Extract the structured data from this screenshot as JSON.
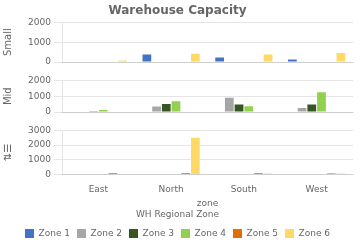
{
  "chart_data": [
    {
      "type": "bar",
      "title": "Warehouse Capacity",
      "ylabel": "Small",
      "categories": [
        "East",
        "North",
        "South",
        "West"
      ],
      "series": [
        {
          "name": "Zone 1",
          "color": "#4472c4",
          "values": [
            0,
            380,
            230,
            130
          ]
        },
        {
          "name": "Zone 2",
          "color": "#a6a6a6",
          "values": [
            0,
            0,
            0,
            0
          ]
        },
        {
          "name": "Zone 3",
          "color": "#375623",
          "values": [
            0,
            0,
            0,
            0
          ]
        },
        {
          "name": "Zone 4",
          "color": "#92d050",
          "values": [
            0,
            0,
            0,
            0
          ]
        },
        {
          "name": "Zone 5",
          "color": "#e36c0a",
          "values": [
            0,
            0,
            0,
            0
          ]
        },
        {
          "name": "Zone 6",
          "color": "#ffd966",
          "values": [
            80,
            420,
            380,
            460
          ]
        }
      ],
      "ylim": [
        0,
        2000
      ],
      "yticks": [
        0,
        1000,
        2000
      ],
      "grid": "y",
      "tick_labels": "y"
    },
    {
      "type": "bar",
      "ylabel": "Mid",
      "categories": [
        "East",
        "North",
        "South",
        "West"
      ],
      "series": [
        {
          "name": "Zone 1",
          "color": "#4472c4",
          "values": [
            0,
            0,
            0,
            0
          ]
        },
        {
          "name": "Zone 2",
          "color": "#a6a6a6",
          "values": [
            0,
            350,
            900,
            260
          ]
        },
        {
          "name": "Zone 3",
          "color": "#375623",
          "values": [
            50,
            500,
            480,
            480
          ]
        },
        {
          "name": "Zone 4",
          "color": "#92d050",
          "values": [
            130,
            680,
            360,
            1250
          ]
        },
        {
          "name": "Zone 5",
          "color": "#e36c0a",
          "values": [
            0,
            0,
            0,
            0
          ]
        },
        {
          "name": "Zone 6",
          "color": "#ffd966",
          "values": [
            0,
            0,
            0,
            0
          ]
        }
      ],
      "ylim": [
        0,
        2000
      ],
      "yticks": [
        0,
        1000,
        2000
      ],
      "grid": "y",
      "tick_labels": "y"
    },
    {
      "type": "bar",
      "ylabel": "⇅☰",
      "xlabel": "zone",
      "categories": [
        "East",
        "North",
        "South",
        "West"
      ],
      "series": [
        {
          "name": "Zone 1",
          "color": "#4472c4",
          "values": [
            0,
            0,
            0,
            0
          ]
        },
        {
          "name": "Zone 2",
          "color": "#a6a6a6",
          "values": [
            0,
            0,
            0,
            0
          ]
        },
        {
          "name": "Zone 3",
          "color": "#375623",
          "values": [
            0,
            0,
            0,
            0
          ]
        },
        {
          "name": "Zone 4",
          "color": "#92d050",
          "values": [
            0,
            0,
            0,
            0
          ]
        },
        {
          "name": "Zone 5",
          "color": "#e36c0a",
          "values": [
            90,
            90,
            90,
            80
          ]
        },
        {
          "name": "Zone 6",
          "color": "#ffd966",
          "values": [
            0,
            2500,
            80,
            80
          ]
        }
      ],
      "ylim": [
        0,
        3000
      ],
      "yticks": [
        0,
        1000,
        2000,
        3000
      ],
      "grid": "y",
      "legend": "bottom",
      "legend_title": "WH Regional Zone"
    }
  ]
}
